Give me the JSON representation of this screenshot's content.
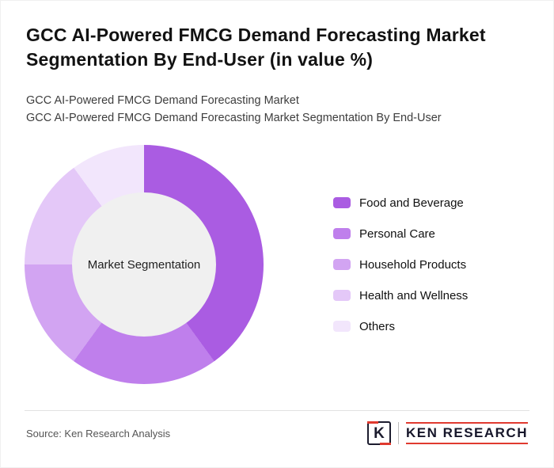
{
  "header": {
    "title": "GCC AI-Powered FMCG Demand Forecasting Market Segmentation By End-User (in value %)",
    "subtitle1": "GCC AI-Powered FMCG Demand Forecasting Market",
    "subtitle2": "GCC AI-Powered FMCG Demand Forecasting Market Segmentation By End-User"
  },
  "chart_data": {
    "type": "pie",
    "subtype": "donut",
    "title": "GCC AI-Powered FMCG Demand Forecasting Market Segmentation By End-User (in value %)",
    "center_label": "Market Segmentation",
    "categories": [
      "Food and Beverage",
      "Personal Care",
      "Household Products",
      "Health and Wellness",
      "Others"
    ],
    "values": [
      40,
      20,
      15,
      15,
      10
    ],
    "colors": [
      "#aa5ce2",
      "#bf7fec",
      "#d2a4f2",
      "#e4c8f8",
      "#f2e6fc"
    ],
    "hole_color": "#f0f0f0",
    "legend_position": "right",
    "start_angle_deg": 0,
    "direction": "clockwise"
  },
  "footer": {
    "source": "Source: Ken Research Analysis",
    "logo_letter": "K",
    "logo_text": "KEN RESEARCH"
  }
}
